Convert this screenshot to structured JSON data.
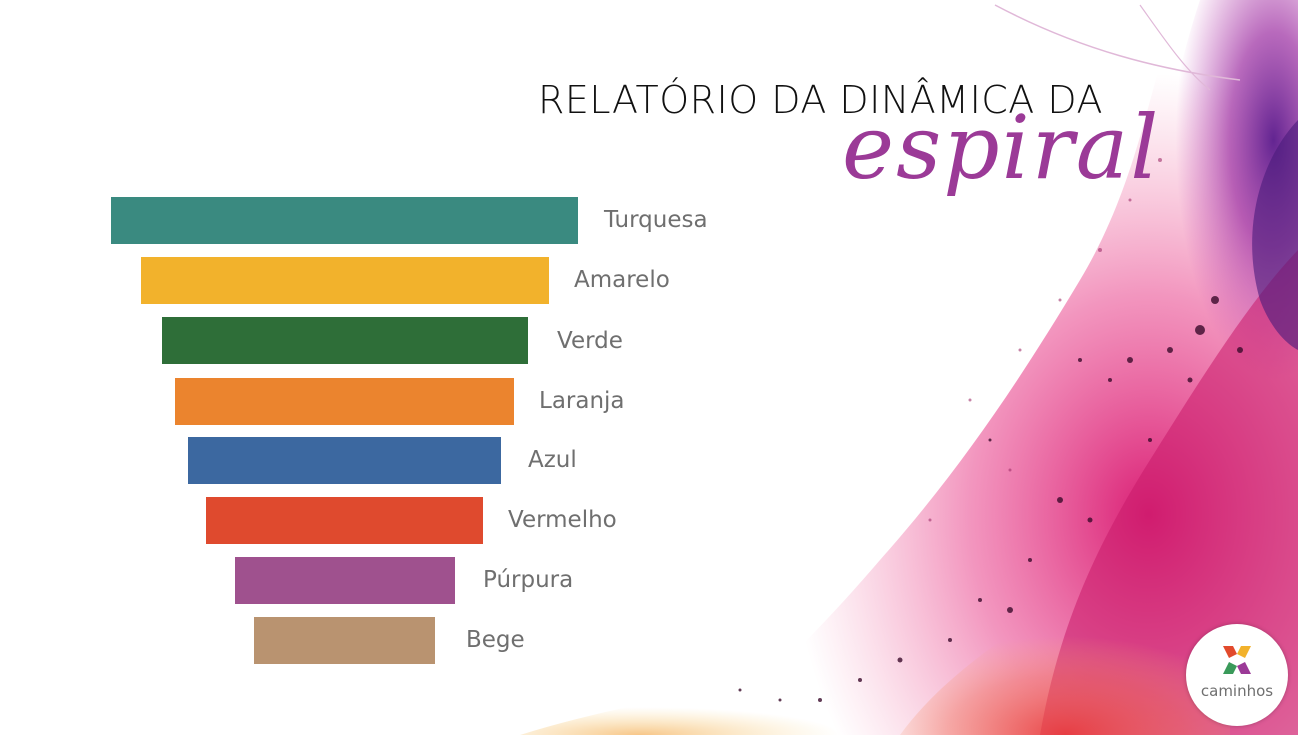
{
  "title": {
    "line1": "RELATÓRIO DA DINÂMICA DA",
    "line2": "espiral"
  },
  "funnel": {
    "items": [
      {
        "label": "Turquesa",
        "color": "#3a8a80"
      },
      {
        "label": "Amarelo",
        "color": "#f2b22c"
      },
      {
        "label": "Verde",
        "color": "#2e6e38"
      },
      {
        "label": "Laranja",
        "color": "#eb842e"
      },
      {
        "label": "Azul",
        "color": "#3c68a0"
      },
      {
        "label": "Vermelho",
        "color": "#df4a2e"
      },
      {
        "label": "Púrpura",
        "color": "#9f518e"
      },
      {
        "label": "Bege",
        "color": "#b99370"
      }
    ]
  },
  "logo": {
    "text": "caminhos",
    "colors": [
      "#e24a2c",
      "#f2b22c",
      "#3a9a5a",
      "#9b3a97"
    ]
  },
  "accent": "#9b3a97"
}
